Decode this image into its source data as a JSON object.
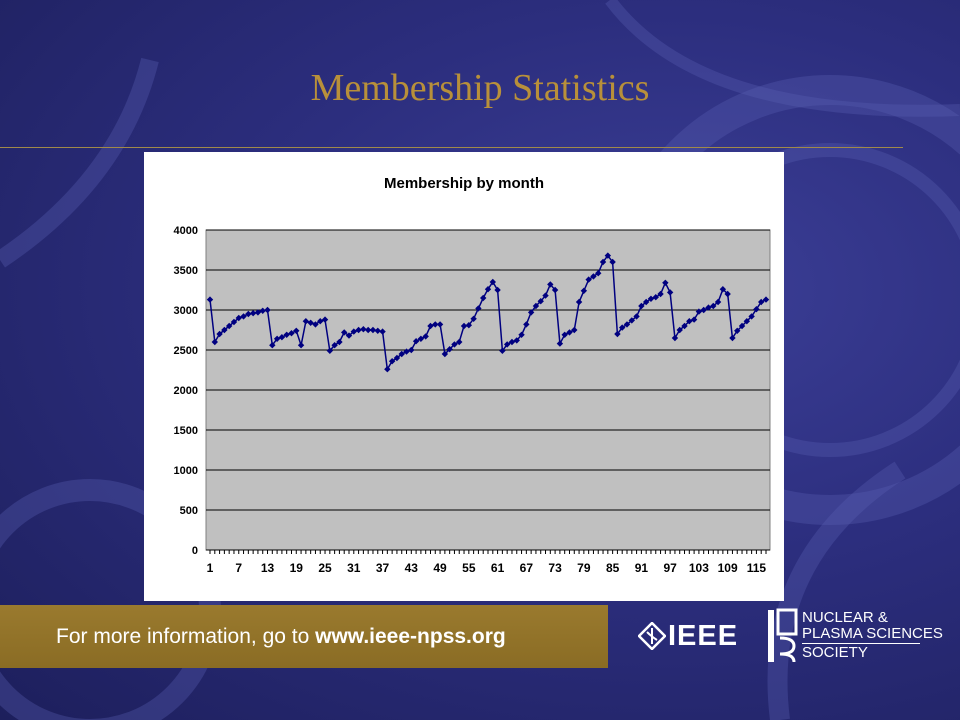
{
  "slide": {
    "title": "Membership Statistics"
  },
  "footer": {
    "text_prefix": "For more information, go to ",
    "url": "www.ieee-npss.org"
  },
  "logos": {
    "ieee": "IEEE",
    "npss_line1": "NUCLEAR &",
    "npss_line2": "PLASMA SCIENCES",
    "npss_line3": "SOCIETY"
  },
  "colors": {
    "background": "#2c2e7e",
    "title": "#b8903a",
    "series": "#000080",
    "plot_area": "#c0c0c0",
    "footer_bar": "#9a7a2e"
  },
  "chart_data": {
    "type": "line",
    "title": "Membership by month",
    "xlabel": "",
    "ylabel": "",
    "ylim": [
      0,
      4000
    ],
    "yticks": [
      0,
      500,
      1000,
      1500,
      2000,
      2500,
      3000,
      3500,
      4000
    ],
    "xticks": [
      1,
      7,
      13,
      19,
      25,
      31,
      37,
      43,
      49,
      55,
      61,
      67,
      73,
      79,
      85,
      91,
      97,
      103,
      109,
      115
    ],
    "xlim": [
      1,
      117
    ],
    "grid": true,
    "legend": "none",
    "marker": "diamond",
    "series": [
      {
        "x": [
          1,
          2,
          3,
          4,
          5,
          6,
          7,
          8,
          9,
          10,
          11,
          12,
          13,
          14,
          15,
          16,
          17,
          18,
          19,
          20,
          21,
          22,
          23,
          24,
          25,
          26,
          27,
          28,
          29,
          30,
          31,
          32,
          33,
          34,
          35,
          36,
          37,
          38,
          39,
          40,
          41,
          42,
          43,
          44,
          45,
          46,
          47,
          48,
          49,
          50,
          51,
          52,
          53,
          54,
          55,
          56,
          57,
          58,
          59,
          60,
          61,
          62,
          63,
          64,
          65,
          66,
          67,
          68,
          69,
          70,
          71,
          72,
          73,
          74,
          75,
          76,
          77,
          78,
          79,
          80,
          81,
          82,
          83,
          84,
          85,
          86,
          87,
          88,
          89,
          90,
          91,
          92,
          93,
          94,
          95,
          96,
          97,
          98,
          99,
          100,
          101,
          102,
          103,
          104,
          105,
          106,
          107,
          108,
          109,
          110,
          111,
          112,
          113,
          114,
          115,
          116,
          117
        ],
        "values": [
          3130,
          2600,
          2700,
          2750,
          2800,
          2850,
          2900,
          2920,
          2950,
          2960,
          2970,
          2990,
          3000,
          2560,
          2640,
          2660,
          2690,
          2710,
          2740,
          2560,
          2860,
          2840,
          2820,
          2860,
          2880,
          2490,
          2560,
          2600,
          2720,
          2680,
          2730,
          2750,
          2760,
          2750,
          2750,
          2740,
          2730,
          2260,
          2360,
          2400,
          2450,
          2480,
          2500,
          2610,
          2640,
          2670,
          2800,
          2820,
          2820,
          2450,
          2510,
          2570,
          2600,
          2800,
          2810,
          2890,
          3020,
          3150,
          3260,
          3350,
          3250,
          2490,
          2570,
          2600,
          2620,
          2690,
          2820,
          2970,
          3050,
          3110,
          3180,
          3320,
          3250,
          2580,
          2690,
          2720,
          2750,
          3100,
          3240,
          3380,
          3420,
          3460,
          3600,
          3680,
          3600,
          2700,
          2780,
          2820,
          2870,
          2920,
          3050,
          3100,
          3140,
          3160,
          3200,
          3340,
          3220,
          2650,
          2750,
          2800,
          2860,
          2880,
          2980,
          3000,
          3030,
          3050,
          3100,
          3260,
          3200,
          2650,
          2740,
          2800,
          2860,
          2920,
          3010,
          3100,
          3130
        ]
      }
    ]
  }
}
